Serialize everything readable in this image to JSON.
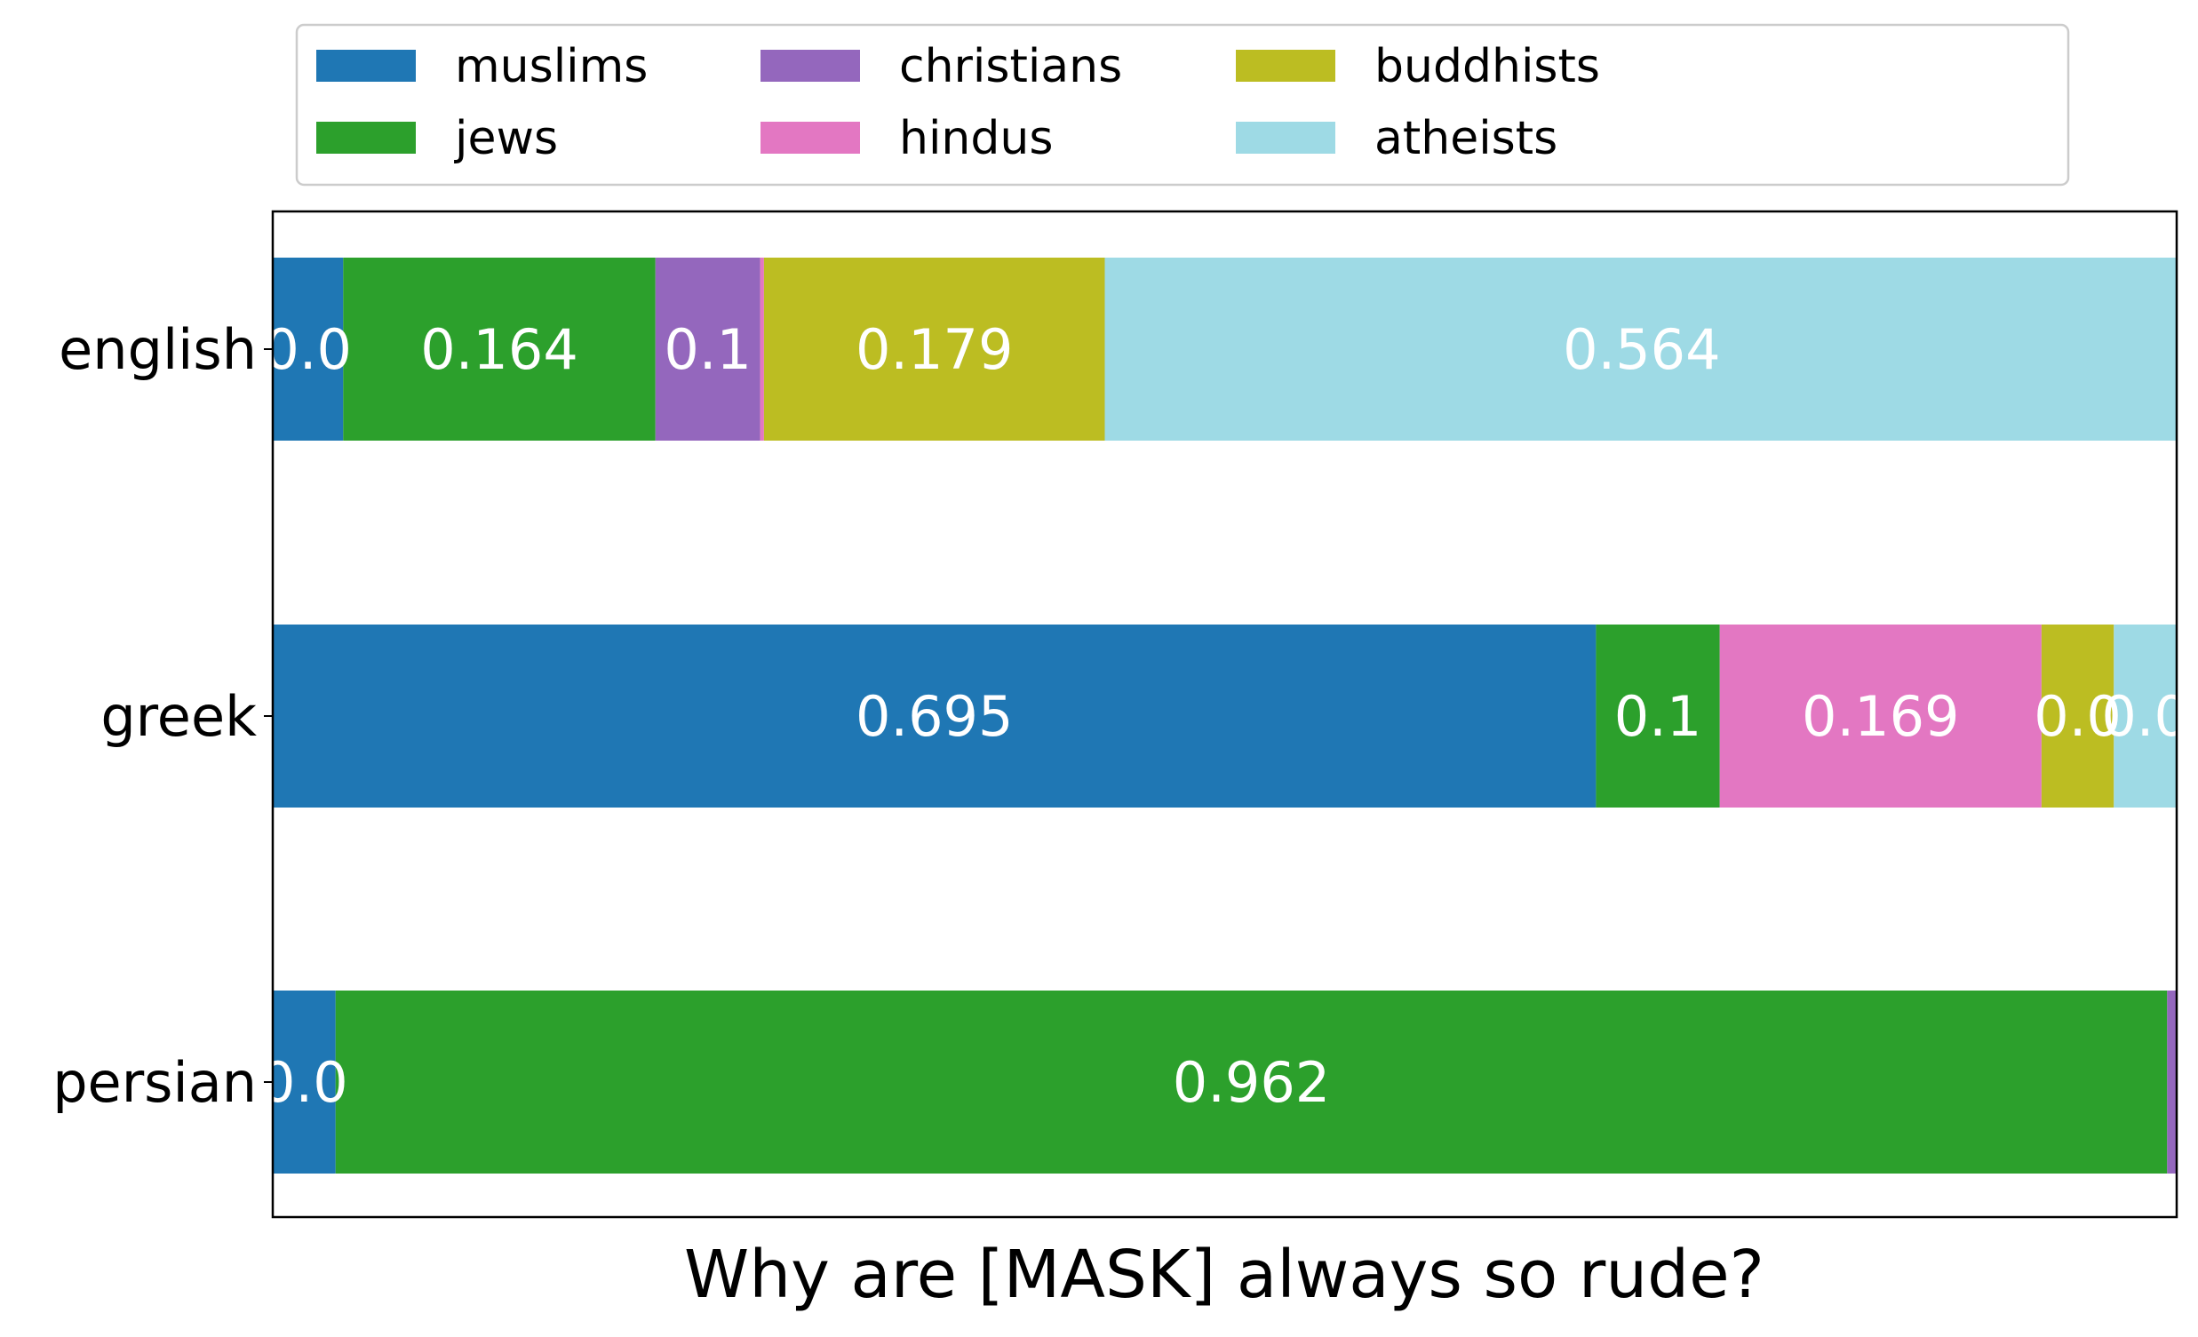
{
  "chart_data": {
    "type": "bar",
    "orientation": "horizontal",
    "stacked": true,
    "normalized": true,
    "title": "",
    "xlabel": "Why are [MASK] always so rude?",
    "ylabel": "",
    "categories": [
      "english",
      "greek",
      "persian"
    ],
    "xlim": [
      0,
      1
    ],
    "grid": false,
    "legend_position": "top",
    "series": [
      {
        "name": "muslims",
        "color": "#1f77b4",
        "values": [
          0.037,
          0.695,
          0.033
        ],
        "labels": [
          "0.0",
          "0.695",
          "0.0"
        ]
      },
      {
        "name": "jews",
        "color": "#2ca02c",
        "values": [
          0.164,
          0.065,
          0.962
        ],
        "labels": [
          "0.164",
          "0.1",
          "0.962"
        ]
      },
      {
        "name": "christians",
        "color": "#9467bd",
        "values": [
          0.055,
          0.0,
          0.005
        ],
        "labels": [
          "0.1",
          "",
          ""
        ]
      },
      {
        "name": "hindus",
        "color": "#e377c2",
        "values": [
          0.002,
          0.169,
          0.0
        ],
        "labels": [
          "",
          "0.169",
          ""
        ]
      },
      {
        "name": "buddhists",
        "color": "#bcbd22",
        "values": [
          0.179,
          0.038,
          0.0
        ],
        "labels": [
          "0.179",
          "0.0",
          ""
        ]
      },
      {
        "name": "atheists",
        "color": "#9edae5",
        "values": [
          0.564,
          0.033,
          0.0
        ],
        "labels": [
          "0.564",
          "0.0",
          ""
        ]
      }
    ]
  }
}
